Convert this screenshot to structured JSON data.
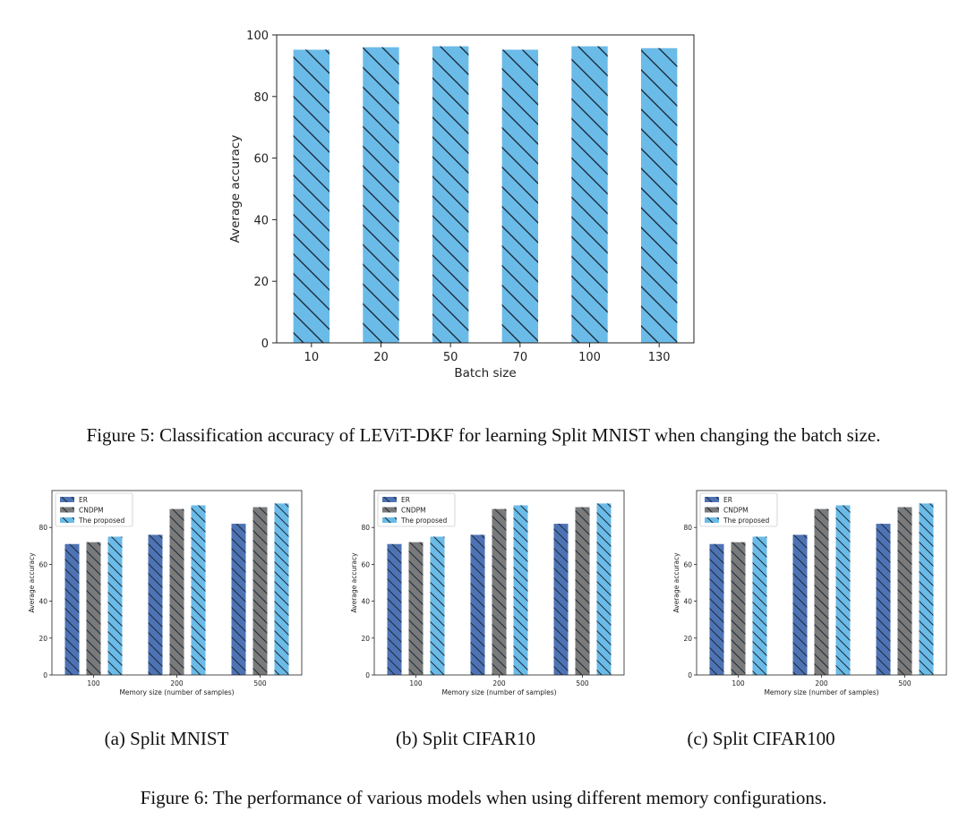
{
  "chart_data": [
    {
      "id": "fig5",
      "type": "bar",
      "categories": [
        "10",
        "20",
        "50",
        "70",
        "100",
        "130"
      ],
      "values": [
        95.2,
        96.0,
        96.3,
        95.2,
        96.3,
        95.7
      ],
      "xlabel": "Batch size",
      "ylabel": "Average accuracy",
      "ylim": [
        0,
        100
      ],
      "yticks": [
        "0",
        "20",
        "40",
        "60",
        "80",
        "100"
      ],
      "grid": false,
      "bar_color": "#6bbbe8",
      "hatch": "\\"
    },
    {
      "id": "fig6a",
      "type": "bar",
      "categories": [
        "100",
        "200",
        "500"
      ],
      "series": [
        {
          "name": "ER",
          "values": [
            71,
            76,
            82
          ],
          "color": "#4e73b5"
        },
        {
          "name": "CNDPM",
          "values": [
            72,
            90,
            91
          ],
          "color": "#7a7a7a"
        },
        {
          "name": "The proposed",
          "values": [
            75,
            92,
            93
          ],
          "color": "#6bbbe8"
        }
      ],
      "xlabel": "Memory size (number of samples)",
      "ylabel": "Average accuracy",
      "ylim": [
        0,
        100
      ],
      "yticks": [
        "0",
        "20",
        "40",
        "60",
        "80"
      ],
      "legend": "top-left",
      "grid": false
    },
    {
      "id": "fig6b",
      "type": "bar",
      "categories": [
        "100",
        "200",
        "500"
      ],
      "series": [
        {
          "name": "ER",
          "values": [
            71,
            76,
            82
          ],
          "color": "#4e73b5"
        },
        {
          "name": "CNDPM",
          "values": [
            72,
            90,
            91
          ],
          "color": "#7a7a7a"
        },
        {
          "name": "The proposed",
          "values": [
            75,
            92,
            93
          ],
          "color": "#6bbbe8"
        }
      ],
      "xlabel": "Memory size (number of samples)",
      "ylabel": "Average accuracy",
      "ylim": [
        0,
        100
      ],
      "yticks": [
        "0",
        "20",
        "40",
        "60",
        "80"
      ],
      "legend": "top-left",
      "grid": false
    },
    {
      "id": "fig6c",
      "type": "bar",
      "categories": [
        "100",
        "200",
        "500"
      ],
      "series": [
        {
          "name": "ER",
          "values": [
            71,
            76,
            82
          ],
          "color": "#4e73b5"
        },
        {
          "name": "CNDPM",
          "values": [
            72,
            90,
            91
          ],
          "color": "#7a7a7a"
        },
        {
          "name": "The proposed",
          "values": [
            75,
            92,
            93
          ],
          "color": "#6bbbe8"
        }
      ],
      "xlabel": "Memory size (number of samples)",
      "ylabel": "Average accuracy",
      "ylim": [
        0,
        100
      ],
      "yticks": [
        "0",
        "20",
        "40",
        "60",
        "80"
      ],
      "legend": "top-left",
      "grid": false
    }
  ],
  "captions": {
    "fig5": "Figure 5: Classification accuracy of LEViT-DKF for learning Split MNIST when changing the batch size.",
    "fig6": "Figure 6: The performance of various models when using different memory configurations.",
    "sub_a": "(a)  Split MNIST",
    "sub_b": "(b)  Split CIFAR10",
    "sub_c": "(c)  Split CIFAR100"
  }
}
